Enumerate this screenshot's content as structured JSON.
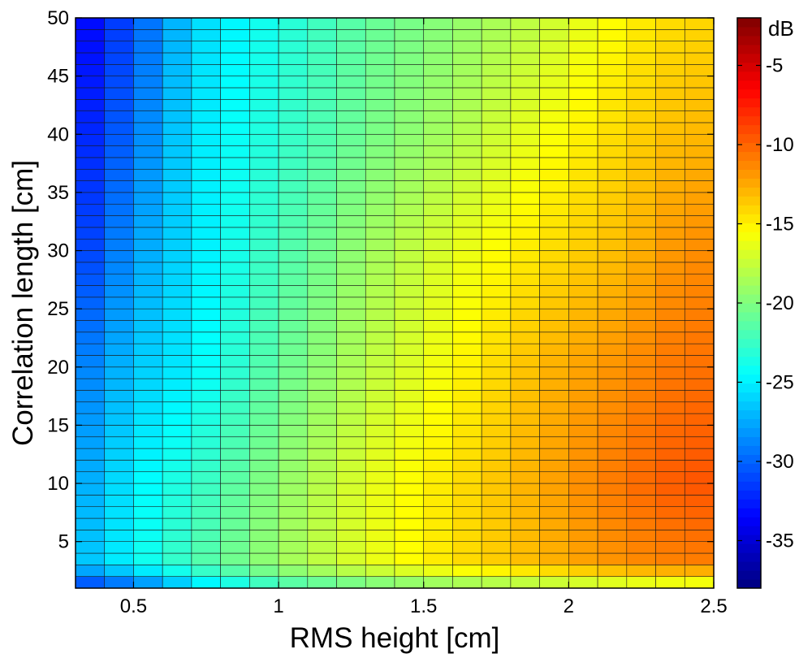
{
  "chart_data": {
    "type": "heatmap",
    "title": "",
    "xlabel": "RMS height [cm]",
    "ylabel": "Correlation length [cm]",
    "colorbar_label": "dB",
    "xlim": [
      0.3,
      2.5
    ],
    "ylim": [
      1,
      50
    ],
    "clim": [
      -38,
      -2
    ],
    "colormap": "jet",
    "x_ticks": [
      0.5,
      1,
      1.5,
      2,
      2.5
    ],
    "x_tick_labels": [
      "0.5",
      "1",
      "1.5",
      "2",
      "2.5"
    ],
    "y_ticks": [
      5,
      10,
      15,
      20,
      25,
      30,
      35,
      40,
      45,
      50
    ],
    "y_tick_labels": [
      "5",
      "10",
      "15",
      "20",
      "25",
      "30",
      "35",
      "40",
      "45",
      "50"
    ],
    "colorbar_ticks": [
      -35,
      -30,
      -25,
      -20,
      -15,
      -10,
      -5
    ],
    "colorbar_tick_labels": [
      "-35",
      "-30",
      "-25",
      "-20",
      "-15",
      "-10",
      "-5"
    ],
    "cell_grid": "black",
    "x_columns": [
      0.3,
      0.4,
      0.5,
      0.6,
      0.7,
      0.8,
      0.9,
      1.0,
      1.1,
      1.2,
      1.3,
      1.4,
      1.5,
      1.6,
      1.7,
      1.8,
      1.9,
      2.0,
      2.1,
      2.2,
      2.3,
      2.4
    ],
    "y_rows": [
      1,
      2,
      3,
      4,
      5,
      6,
      7,
      8,
      9,
      10,
      11,
      12,
      13,
      14,
      15,
      16,
      17,
      18,
      19,
      20,
      21,
      22,
      23,
      24,
      25,
      26,
      27,
      28,
      29,
      30,
      31,
      32,
      33,
      34,
      35,
      36,
      37,
      38,
      39,
      40,
      41,
      42,
      43,
      44,
      45,
      46,
      47,
      48,
      49
    ],
    "z_sample": {
      "y": [
        1,
        3,
        10,
        20,
        30,
        40,
        49
      ],
      "x": [
        0.3,
        0.5,
        0.7,
        1.0,
        1.3,
        1.6,
        1.9,
        2.2,
        2.4
      ],
      "z": [
        [
          -32,
          -30,
          -26.5,
          -22.5,
          -21,
          -20,
          -19,
          -18,
          -17.5
        ],
        [
          -27,
          -24.5,
          -22,
          -19,
          -16.5,
          -14.5,
          -13,
          -11.5,
          -11
        ],
        [
          -28,
          -25,
          -23,
          -19.5,
          -16.5,
          -14.5,
          -12.5,
          -10.5,
          -9.5
        ],
        [
          -29.5,
          -26.5,
          -25,
          -21,
          -18,
          -15.5,
          -13,
          -11.5,
          -10.5
        ],
        [
          -32,
          -28,
          -25.5,
          -22,
          -19,
          -16.5,
          -14.5,
          -13,
          -11.5
        ],
        [
          -33,
          -29.5,
          -25.5,
          -23,
          -20.5,
          -18.5,
          -16,
          -14,
          -13
        ],
        [
          -34,
          -30.5,
          -26,
          -23.5,
          -21,
          -19.5,
          -17.5,
          -15,
          -14
        ]
      ]
    }
  }
}
